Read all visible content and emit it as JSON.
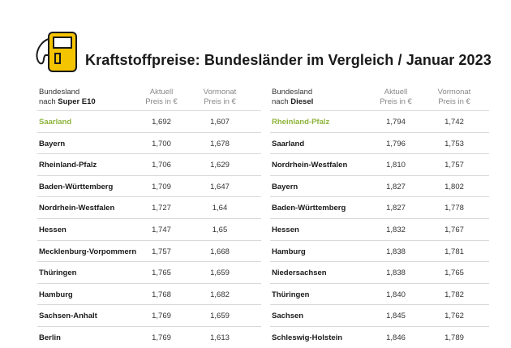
{
  "title": "Kraftstoffpreise: Bundesländer im Vergleich / Januar 2023",
  "colors": {
    "highlight": "#8db33a",
    "pump_yellow": "#f5c400",
    "pump_outline": "#1a1a1a"
  },
  "icon": "fuel-pump-icon",
  "e10": {
    "header": {
      "label_line1": "Bundesland",
      "label_prefix": "nach ",
      "label_bold": "Super E10",
      "aktuell_line1": "Aktuell",
      "aktuell_line2": "Preis in €",
      "vormonat_line1": "Vormonat",
      "vormonat_line2": "Preis in €"
    },
    "rows": [
      {
        "name": "Saarland",
        "aktuell": "1,692",
        "vormonat": "1,607",
        "highlight": true
      },
      {
        "name": "Bayern",
        "aktuell": "1,700",
        "vormonat": "1,678"
      },
      {
        "name": "Rheinland-Pfalz",
        "aktuell": "1,706",
        "vormonat": "1,629"
      },
      {
        "name": "Baden-Württemberg",
        "aktuell": "1,709",
        "vormonat": "1,647"
      },
      {
        "name": "Nordrhein-Westfalen",
        "aktuell": "1,727",
        "vormonat": "1,64"
      },
      {
        "name": "Hessen",
        "aktuell": "1,747",
        "vormonat": "1,65"
      },
      {
        "name": "Mecklenburg-Vorpommern",
        "aktuell": "1,757",
        "vormonat": "1,668"
      },
      {
        "name": "Thüringen",
        "aktuell": "1,765",
        "vormonat": "1,659"
      },
      {
        "name": "Hamburg",
        "aktuell": "1,768",
        "vormonat": "1,682"
      },
      {
        "name": "Sachsen-Anhalt",
        "aktuell": "1,769",
        "vormonat": "1,659"
      },
      {
        "name": "Berlin",
        "aktuell": "1,769",
        "vormonat": "1,613"
      }
    ]
  },
  "diesel": {
    "header": {
      "label_line1": "Bundesland",
      "label_prefix": "nach ",
      "label_bold": "Diesel",
      "aktuell_line1": "Aktuell",
      "aktuell_line2": "Preis in €",
      "vormonat_line1": "Vormonat",
      "vormonat_line2": "Preis in €"
    },
    "rows": [
      {
        "name": "Rheinland-Pfalz",
        "aktuell": "1,794",
        "vormonat": "1,742",
        "highlight": true
      },
      {
        "name": "Saarland",
        "aktuell": "1,796",
        "vormonat": "1,753"
      },
      {
        "name": "Nordrhein-Westfalen",
        "aktuell": "1,810",
        "vormonat": "1,757"
      },
      {
        "name": "Bayern",
        "aktuell": "1,827",
        "vormonat": "1,802"
      },
      {
        "name": "Baden-Württemberg",
        "aktuell": "1,827",
        "vormonat": "1,778"
      },
      {
        "name": "Hessen",
        "aktuell": "1,832",
        "vormonat": "1,767"
      },
      {
        "name": "Hamburg",
        "aktuell": "1,838",
        "vormonat": "1,781"
      },
      {
        "name": "Niedersachsen",
        "aktuell": "1,838",
        "vormonat": "1,765"
      },
      {
        "name": "Thüringen",
        "aktuell": "1,840",
        "vormonat": "1,782"
      },
      {
        "name": "Sachsen",
        "aktuell": "1,845",
        "vormonat": "1,762"
      },
      {
        "name": "Schleswig-Holstein",
        "aktuell": "1,846",
        "vormonat": "1,789"
      }
    ]
  }
}
